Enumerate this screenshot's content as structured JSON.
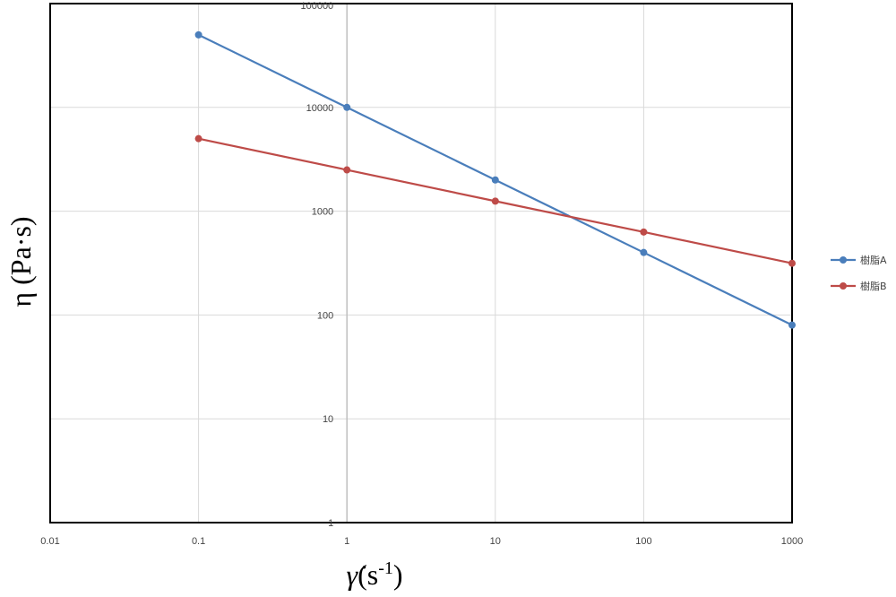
{
  "chart_data": {
    "type": "line",
    "title": "",
    "xscale": "log",
    "yscale": "log",
    "xlim": [
      0.01,
      1000
    ],
    "ylim": [
      1,
      100000
    ],
    "x_ticks": [
      "0.01",
      "0.1",
      "1",
      "10",
      "100",
      "1000"
    ],
    "y_ticks": [
      "1",
      "10",
      "100",
      "1000",
      "10000",
      "100000"
    ],
    "xlabel_symbol": "γ̇",
    "xlabel_unit_open": "(s",
    "xlabel_unit_exp": "-1",
    "xlabel_unit_close": ")",
    "ylabel": "η (Pa·s)",
    "grid": true,
    "legend_position": "right",
    "series": [
      {
        "name": "樹脂A",
        "color": "#4a7ebb",
        "points": [
          [
            0.1,
            50000
          ],
          [
            1,
            10000
          ],
          [
            10,
            2000
          ],
          [
            100,
            400
          ],
          [
            1000,
            80
          ]
        ]
      },
      {
        "name": "樹脂B",
        "color": "#be4b48",
        "points": [
          [
            0.1,
            5000
          ],
          [
            1,
            2500
          ],
          [
            10,
            1250
          ],
          [
            100,
            630
          ],
          [
            1000,
            315
          ]
        ]
      }
    ]
  }
}
